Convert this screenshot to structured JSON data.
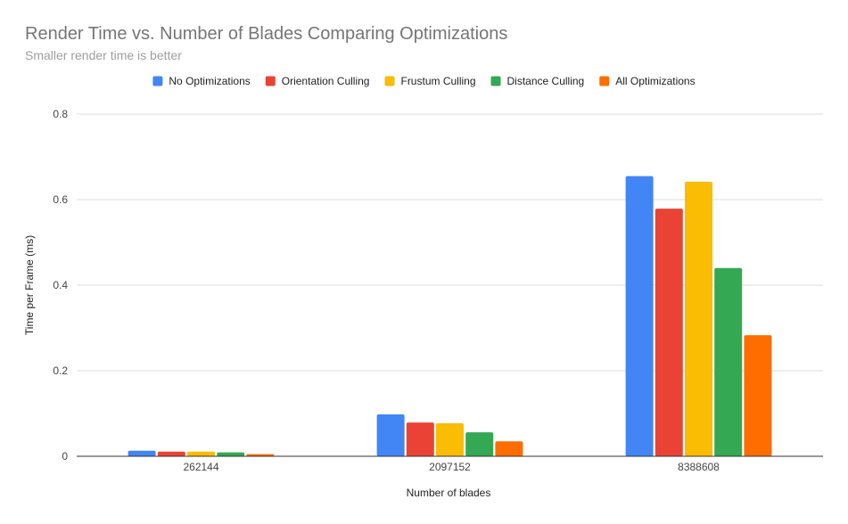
{
  "chart_data": {
    "type": "bar",
    "title": "Render Time vs. Number of Blades Comparing Optimizations",
    "subtitle": "Smaller render time is better",
    "xlabel": "Number of blades",
    "ylabel": "Time per Frame (ms)",
    "categories": [
      "262144",
      "2097152",
      "8388608"
    ],
    "series": [
      {
        "name": "No Optimizations",
        "color": "#4285f4",
        "values": [
          0.013,
          0.098,
          0.655
        ]
      },
      {
        "name": "Orientation Culling",
        "color": "#ea4335",
        "values": [
          0.011,
          0.079,
          0.579
        ]
      },
      {
        "name": "Frustum Culling",
        "color": "#fbbc04",
        "values": [
          0.011,
          0.077,
          0.642
        ]
      },
      {
        "name": "Distance Culling",
        "color": "#34a853",
        "values": [
          0.009,
          0.056,
          0.44
        ]
      },
      {
        "name": "All Optimizations",
        "color": "#ff6d01",
        "values": [
          0.005,
          0.035,
          0.283
        ]
      }
    ],
    "ylim": [
      0,
      0.8
    ],
    "yticks": [
      "0",
      "0.2",
      "0.4",
      "0.6",
      "0.8"
    ],
    "grid": true,
    "legend_position": "top"
  }
}
